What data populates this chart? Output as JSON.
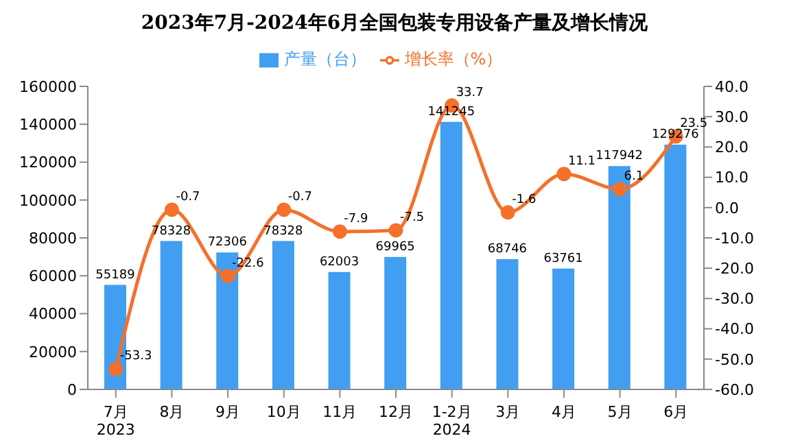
{
  "chart_data": {
    "type": "bar",
    "title": "2023年7月-2024年6月全国包装专用设备产量及增长情况",
    "categories": [
      "7月\n2023",
      "8月",
      "9月",
      "10月",
      "11月",
      "12月",
      "1-2月\n2024",
      "3月",
      "4月",
      "5月",
      "6月"
    ],
    "series": [
      {
        "name": "产量（台）",
        "color": "#419ef0",
        "values": [
          55189,
          78328,
          72306,
          78328,
          62003,
          69965,
          141245,
          68746,
          63761,
          117942,
          129276
        ]
      },
      {
        "name": "增长率（%）",
        "type": "line",
        "axis": "y2",
        "color": "#f4702b",
        "marker": "circle",
        "values": [
          -53.3,
          -0.7,
          -22.6,
          -0.7,
          -7.9,
          -7.5,
          33.7,
          -1.6,
          11.1,
          6.1,
          23.5
        ]
      }
    ],
    "ylim": [
      0,
      160000
    ],
    "yticks": [
      0,
      20000,
      40000,
      60000,
      80000,
      100000,
      120000,
      140000,
      160000
    ],
    "y2lim": [
      -60,
      40
    ],
    "y2ticks": [
      {
        "value": -60,
        "label": "-60.0"
      },
      {
        "value": -50,
        "label": "-50.0"
      },
      {
        "value": -40,
        "label": "-40.0"
      },
      {
        "value": -30,
        "label": "-30.0"
      },
      {
        "value": -20,
        "label": "-20.0"
      },
      {
        "value": -10,
        "label": "-10.0"
      },
      {
        "value": 0,
        "label": "0.0"
      },
      {
        "value": 10,
        "label": "10.0"
      },
      {
        "value": 20,
        "label": "20.0"
      },
      {
        "value": 30,
        "label": "30.0"
      },
      {
        "value": 40,
        "label": "40.0"
      }
    ],
    "data_labels": true,
    "legend": "top",
    "grid": false
  }
}
